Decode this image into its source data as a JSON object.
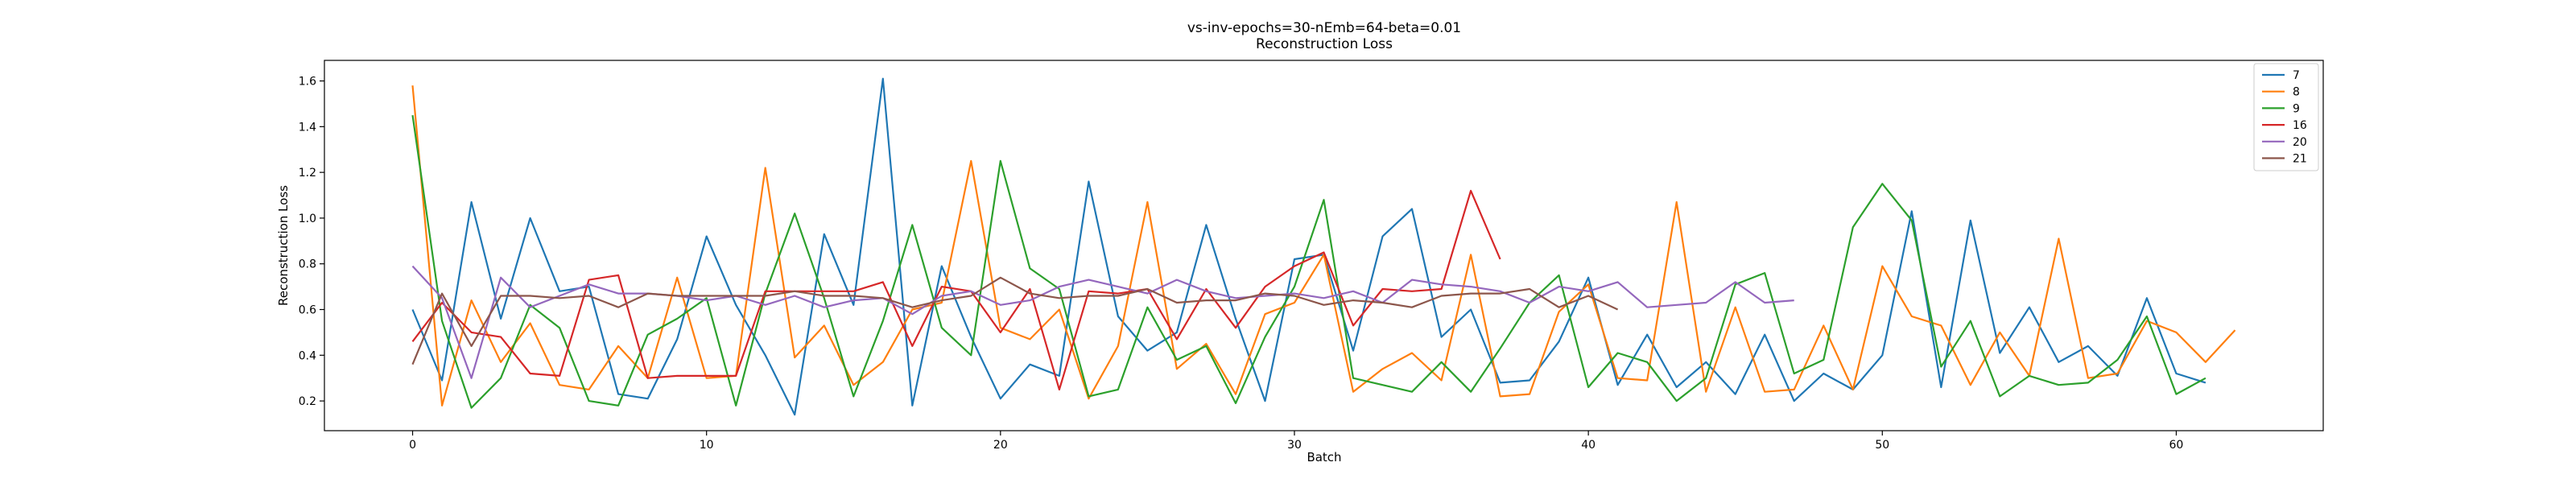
{
  "chart_data": {
    "type": "line",
    "title": "vs-inv-epochs=30-nEmb=64-beta=0.01",
    "subtitle": "Reconstruction Loss",
    "xlabel": "Batch",
    "ylabel": "Reconstruction Loss",
    "xlim": [
      -3,
      65
    ],
    "ylim": [
      0.07,
      1.69
    ],
    "xticks": [
      0,
      10,
      20,
      30,
      40,
      50,
      60
    ],
    "yticks": [
      0.2,
      0.4,
      0.6,
      0.8,
      1.0,
      1.2,
      1.4,
      1.6
    ],
    "ytick_labels": [
      "0.2",
      "0.4",
      "0.6",
      "0.8",
      "1.0",
      "1.2",
      "1.4",
      "1.6"
    ],
    "grid": false,
    "legend_position": "top-right",
    "series": [
      {
        "name": "7",
        "color": "#1f77b4",
        "values": [
          0.6,
          0.29,
          1.07,
          0.56,
          1.0,
          0.68,
          0.7,
          0.23,
          0.21,
          0.47,
          0.92,
          0.62,
          0.4,
          0.14,
          0.93,
          0.62,
          1.61,
          0.18,
          0.79,
          0.48,
          0.21,
          0.36,
          0.31,
          1.16,
          0.57,
          0.42,
          0.5,
          0.97,
          0.56,
          0.2,
          0.82,
          0.84,
          0.42,
          0.92,
          1.04,
          0.48,
          0.6,
          0.28,
          0.29,
          0.46,
          0.74,
          0.27,
          0.49,
          0.26,
          0.37,
          0.23,
          0.49,
          0.2,
          0.32,
          0.25,
          0.4,
          1.03,
          0.26,
          0.99,
          0.41,
          0.61,
          0.37,
          0.44,
          0.31,
          0.65,
          0.32,
          0.28
        ]
      },
      {
        "name": "8",
        "color": "#ff7f0e",
        "values": [
          1.58,
          0.18,
          0.64,
          0.37,
          0.54,
          0.27,
          0.25,
          0.44,
          0.3,
          0.74,
          0.3,
          0.31,
          1.22,
          0.39,
          0.53,
          0.27,
          0.37,
          0.6,
          0.63,
          1.25,
          0.52,
          0.47,
          0.6,
          0.21,
          0.44,
          1.07,
          0.34,
          0.45,
          0.23,
          0.58,
          0.63,
          0.84,
          0.24,
          0.34,
          0.41,
          0.29,
          0.84,
          0.22,
          0.23,
          0.59,
          0.71,
          0.3,
          0.29,
          1.07,
          0.24,
          0.61,
          0.24,
          0.25,
          0.53,
          0.25,
          0.79,
          0.57,
          0.53,
          0.27,
          0.5,
          0.31,
          0.91,
          0.3,
          0.32,
          0.55,
          0.5,
          0.37,
          0.51
        ]
      },
      {
        "name": "9",
        "color": "#2ca02c",
        "values": [
          1.45,
          0.55,
          0.17,
          0.3,
          0.62,
          0.52,
          0.2,
          0.18,
          0.49,
          0.56,
          0.65,
          0.18,
          0.67,
          1.02,
          0.65,
          0.22,
          0.55,
          0.97,
          0.52,
          0.4,
          1.25,
          0.78,
          0.69,
          0.22,
          0.25,
          0.61,
          0.38,
          0.44,
          0.19,
          0.48,
          0.7,
          1.08,
          0.3,
          0.27,
          0.24,
          0.37,
          0.24,
          0.43,
          0.63,
          0.75,
          0.26,
          0.41,
          0.37,
          0.2,
          0.3,
          0.71,
          0.76,
          0.32,
          0.38,
          0.96,
          1.15,
          0.99,
          0.35,
          0.55,
          0.22,
          0.31,
          0.27,
          0.28,
          0.38,
          0.57,
          0.23,
          0.3
        ]
      },
      {
        "name": "16",
        "color": "#d62728",
        "values": [
          0.46,
          0.63,
          0.5,
          0.48,
          0.32,
          0.31,
          0.73,
          0.75,
          0.3,
          0.31,
          0.31,
          0.31,
          0.68,
          0.68,
          0.68,
          0.68,
          0.72,
          0.44,
          0.7,
          0.68,
          0.5,
          0.69,
          0.25,
          0.68,
          0.67,
          0.69,
          0.47,
          0.69,
          0.52,
          0.7,
          0.79,
          0.85,
          0.53,
          0.69,
          0.68,
          0.69,
          1.12,
          0.82
        ]
      },
      {
        "name": "20",
        "color": "#9467bd",
        "values": [
          0.79,
          0.65,
          0.3,
          0.74,
          0.61,
          0.66,
          0.71,
          0.67,
          0.67,
          0.66,
          0.64,
          0.66,
          0.62,
          0.66,
          0.61,
          0.64,
          0.65,
          0.58,
          0.66,
          0.68,
          0.62,
          0.64,
          0.7,
          0.73,
          0.7,
          0.67,
          0.73,
          0.68,
          0.65,
          0.66,
          0.67,
          0.65,
          0.68,
          0.63,
          0.73,
          0.71,
          0.7,
          0.68,
          0.63,
          0.7,
          0.68,
          0.72,
          0.61,
          0.62,
          0.63,
          0.72,
          0.63,
          0.64
        ]
      },
      {
        "name": "21",
        "color": "#8c564b",
        "values": [
          0.36,
          0.67,
          0.44,
          0.66,
          0.66,
          0.65,
          0.66,
          0.61,
          0.67,
          0.66,
          0.66,
          0.66,
          0.66,
          0.68,
          0.66,
          0.66,
          0.65,
          0.61,
          0.64,
          0.66,
          0.74,
          0.67,
          0.65,
          0.66,
          0.66,
          0.69,
          0.63,
          0.64,
          0.64,
          0.67,
          0.66,
          0.62,
          0.64,
          0.63,
          0.61,
          0.66,
          0.67,
          0.67,
          0.69,
          0.61,
          0.66,
          0.6
        ]
      }
    ]
  }
}
